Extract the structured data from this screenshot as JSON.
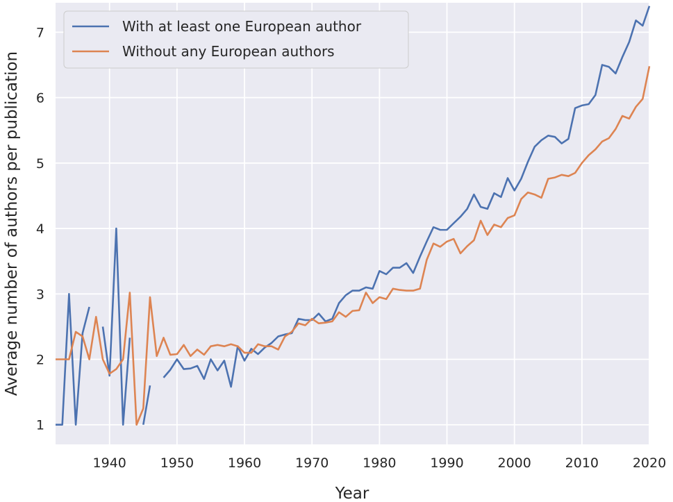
{
  "chart_data": {
    "type": "line",
    "title": "",
    "xlabel": "Year",
    "ylabel": "Average number of authors per publication",
    "xlim": [
      1932,
      2020
    ],
    "ylim": [
      0.7,
      7.45
    ],
    "xticks": [
      1940,
      1950,
      1960,
      1970,
      1980,
      1990,
      2000,
      2010,
      2020
    ],
    "yticks": [
      1,
      2,
      3,
      4,
      5,
      6,
      7
    ],
    "grid": true,
    "legend_position": "top-left",
    "background": "#eaeaf2",
    "series": [
      {
        "name": "With at least one European author",
        "color": "#4c72b0",
        "points": [
          [
            1932,
            1.0
          ],
          [
            1933,
            1.0
          ],
          [
            1934,
            3.0
          ],
          [
            1935,
            1.0
          ],
          [
            1936,
            2.4
          ],
          [
            1937,
            2.8
          ],
          null,
          [
            1939,
            2.5
          ],
          [
            1940,
            1.75
          ],
          [
            1941,
            4.0
          ],
          [
            1942,
            1.0
          ],
          [
            1943,
            2.33
          ],
          [
            1944,
            null
          ],
          [
            1945,
            1.0
          ],
          [
            1946,
            1.6
          ],
          null,
          [
            1948,
            1.72
          ],
          [
            1949,
            1.84
          ],
          [
            1950,
            2.0
          ],
          [
            1951,
            1.85
          ],
          [
            1952,
            1.86
          ],
          [
            1953,
            1.9
          ],
          [
            1954,
            1.7
          ],
          [
            1955,
            2.0
          ],
          [
            1956,
            1.83
          ],
          [
            1957,
            1.98
          ],
          [
            1958,
            1.58
          ],
          [
            1959,
            2.2
          ],
          [
            1960,
            1.98
          ],
          [
            1961,
            2.16
          ],
          [
            1962,
            2.08
          ],
          [
            1963,
            2.18
          ],
          [
            1964,
            2.25
          ],
          [
            1965,
            2.35
          ],
          [
            1966,
            2.38
          ],
          [
            1967,
            2.4
          ],
          [
            1968,
            2.62
          ],
          [
            1969,
            2.6
          ],
          [
            1970,
            2.6
          ],
          [
            1971,
            2.7
          ],
          [
            1972,
            2.58
          ],
          [
            1973,
            2.62
          ],
          [
            1974,
            2.86
          ],
          [
            1975,
            2.98
          ],
          [
            1976,
            3.05
          ],
          [
            1977,
            3.05
          ],
          [
            1978,
            3.1
          ],
          [
            1979,
            3.08
          ],
          [
            1980,
            3.35
          ],
          [
            1981,
            3.3
          ],
          [
            1982,
            3.4
          ],
          [
            1983,
            3.4
          ],
          [
            1984,
            3.47
          ],
          [
            1985,
            3.32
          ],
          [
            1986,
            3.57
          ],
          [
            1987,
            3.8
          ],
          [
            1988,
            4.02
          ],
          [
            1989,
            3.98
          ],
          [
            1990,
            3.98
          ],
          [
            1991,
            4.08
          ],
          [
            1992,
            4.18
          ],
          [
            1993,
            4.3
          ],
          [
            1994,
            4.52
          ],
          [
            1995,
            4.33
          ],
          [
            1996,
            4.3
          ],
          [
            1997,
            4.54
          ],
          [
            1998,
            4.48
          ],
          [
            1999,
            4.77
          ],
          [
            2000,
            4.58
          ],
          [
            2001,
            4.76
          ],
          [
            2002,
            5.02
          ],
          [
            2003,
            5.25
          ],
          [
            2004,
            5.35
          ],
          [
            2005,
            5.42
          ],
          [
            2006,
            5.4
          ],
          [
            2007,
            5.3
          ],
          [
            2008,
            5.37
          ],
          [
            2009,
            5.84
          ],
          [
            2010,
            5.88
          ],
          [
            2011,
            5.9
          ],
          [
            2012,
            6.04
          ],
          [
            2013,
            6.5
          ],
          [
            2014,
            6.47
          ],
          [
            2015,
            6.37
          ],
          [
            2016,
            6.62
          ],
          [
            2017,
            6.85
          ],
          [
            2018,
            7.18
          ],
          [
            2019,
            7.1
          ],
          [
            2020,
            7.4
          ]
        ]
      },
      {
        "name": "Without any European authors",
        "color": "#dd8452",
        "points": [
          [
            1932,
            2.0
          ],
          [
            1933,
            2.0
          ],
          [
            1934,
            2.0
          ],
          [
            1935,
            2.42
          ],
          [
            1936,
            2.35
          ],
          [
            1937,
            2.0
          ],
          [
            1938,
            2.65
          ],
          [
            1939,
            2.0
          ],
          [
            1940,
            1.78
          ],
          [
            1941,
            1.85
          ],
          [
            1942,
            2.0
          ],
          [
            1943,
            3.02
          ],
          [
            1944,
            1.0
          ],
          [
            1945,
            1.25
          ],
          [
            1946,
            2.95
          ],
          [
            1947,
            2.05
          ],
          [
            1948,
            2.33
          ],
          [
            1949,
            2.07
          ],
          [
            1950,
            2.08
          ],
          [
            1951,
            2.22
          ],
          [
            1952,
            2.05
          ],
          [
            1953,
            2.15
          ],
          [
            1954,
            2.07
          ],
          [
            1955,
            2.2
          ],
          [
            1956,
            2.22
          ],
          [
            1957,
            2.2
          ],
          [
            1958,
            2.23
          ],
          [
            1959,
            2.2
          ],
          [
            1960,
            2.1
          ],
          [
            1961,
            2.1
          ],
          [
            1962,
            2.23
          ],
          [
            1963,
            2.2
          ],
          [
            1964,
            2.2
          ],
          [
            1965,
            2.15
          ],
          [
            1966,
            2.35
          ],
          [
            1967,
            2.42
          ],
          [
            1968,
            2.55
          ],
          [
            1969,
            2.52
          ],
          [
            1970,
            2.62
          ],
          [
            1971,
            2.55
          ],
          [
            1972,
            2.56
          ],
          [
            1973,
            2.58
          ],
          [
            1974,
            2.72
          ],
          [
            1975,
            2.65
          ],
          [
            1976,
            2.74
          ],
          [
            1977,
            2.75
          ],
          [
            1978,
            3.02
          ],
          [
            1979,
            2.86
          ],
          [
            1980,
            2.95
          ],
          [
            1981,
            2.92
          ],
          [
            1982,
            3.08
          ],
          [
            1983,
            3.06
          ],
          [
            1984,
            3.05
          ],
          [
            1985,
            3.05
          ],
          [
            1986,
            3.08
          ],
          [
            1987,
            3.52
          ],
          [
            1988,
            3.77
          ],
          [
            1989,
            3.72
          ],
          [
            1990,
            3.8
          ],
          [
            1991,
            3.84
          ],
          [
            1992,
            3.62
          ],
          [
            1993,
            3.73
          ],
          [
            1994,
            3.82
          ],
          [
            1995,
            4.12
          ],
          [
            1996,
            3.9
          ],
          [
            1997,
            4.06
          ],
          [
            1998,
            4.02
          ],
          [
            1999,
            4.16
          ],
          [
            2000,
            4.2
          ],
          [
            2001,
            4.45
          ],
          [
            2002,
            4.55
          ],
          [
            2003,
            4.52
          ],
          [
            2004,
            4.47
          ],
          [
            2005,
            4.76
          ],
          [
            2006,
            4.78
          ],
          [
            2007,
            4.82
          ],
          [
            2008,
            4.8
          ],
          [
            2009,
            4.85
          ],
          [
            2010,
            5.0
          ],
          [
            2011,
            5.12
          ],
          [
            2012,
            5.21
          ],
          [
            2013,
            5.33
          ],
          [
            2014,
            5.38
          ],
          [
            2015,
            5.52
          ],
          [
            2016,
            5.72
          ],
          [
            2017,
            5.68
          ],
          [
            2018,
            5.86
          ],
          [
            2019,
            5.98
          ],
          [
            2020,
            6.48
          ]
        ]
      }
    ]
  }
}
